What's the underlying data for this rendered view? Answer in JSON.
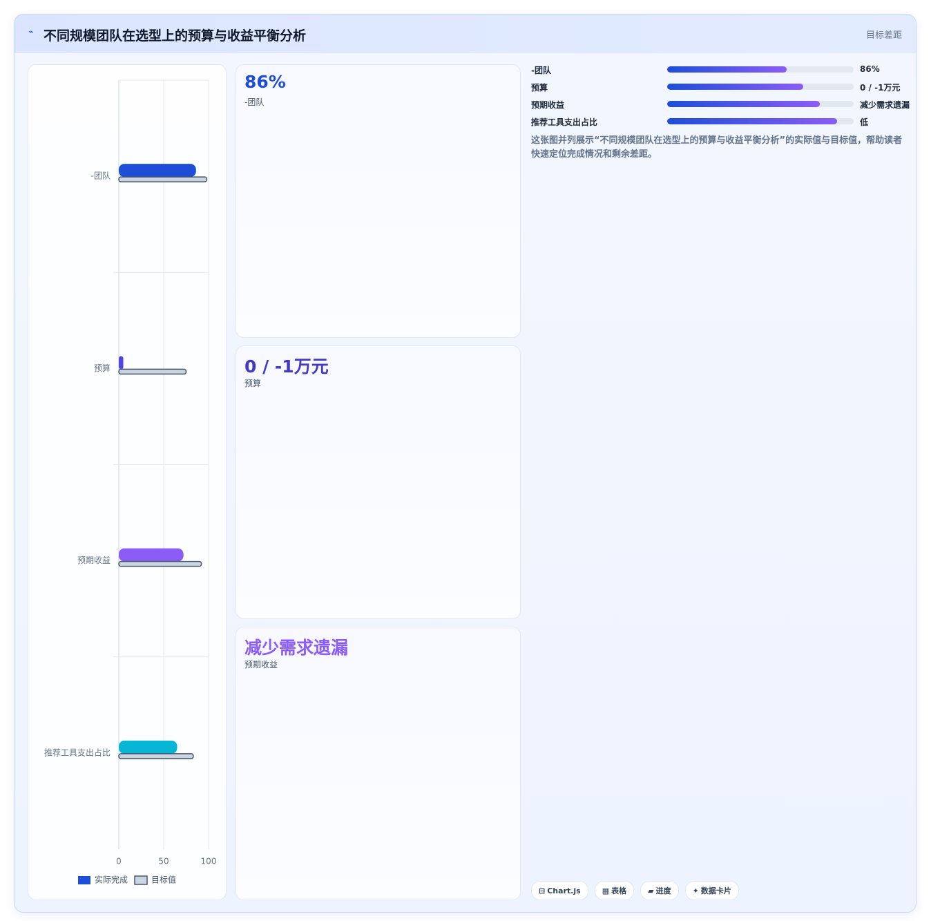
{
  "header": {
    "icon": "⌁",
    "title": "不同规模团队在选型上的预算与收益平衡分析",
    "right": "目标差距"
  },
  "chart_data": {
    "type": "bar",
    "orientation": "horizontal",
    "categories": [
      "-团队",
      "预算",
      "预期收益",
      "推荐工具支出占比"
    ],
    "series": [
      {
        "name": "实际完成",
        "color": "#1d4ed8",
        "colors": [
          "#1d4ed8",
          "#4f46e5",
          "#8b5cf6",
          "#06b6d4"
        ],
        "values": [
          86,
          5,
          72,
          65
        ]
      },
      {
        "name": "目标值",
        "color": "#cbd5e1",
        "border": "#475569",
        "values": [
          98,
          75,
          92,
          83
        ]
      }
    ],
    "xlim": [
      0,
      100
    ],
    "xticks": [
      0,
      50,
      100
    ],
    "grid": true,
    "legend": "bottom"
  },
  "cards": [
    {
      "value": "86%",
      "label": "-团队",
      "color": "#1d4ed8"
    },
    {
      "value": "0 / -1万元",
      "label": "预算",
      "color": "#4338ca"
    },
    {
      "value": "减少需求遗漏",
      "label": "预期收益",
      "color": "#8b5cf6"
    }
  ],
  "progress": [
    {
      "label": "-团队",
      "percent": 64,
      "value": "86%"
    },
    {
      "label": "预算",
      "percent": 73,
      "value": "0 / -1万元"
    },
    {
      "label": "预期收益",
      "percent": 82,
      "value": "减少需求遗漏"
    },
    {
      "label": "推荐工具支出占比",
      "percent": 91,
      "value": "低"
    }
  ],
  "description": "这张图并列展示“不同规模团队在选型上的预算与收益平衡分析”的实际值与目标值，帮助读者快速定位完成情况和剩余差距。",
  "tags": [
    {
      "icon": "⊟",
      "label": "Chart.js"
    },
    {
      "icon": "▦",
      "label": "表格"
    },
    {
      "icon": "▰",
      "label": "进度"
    },
    {
      "icon": "✦",
      "label": "数据卡片"
    }
  ]
}
